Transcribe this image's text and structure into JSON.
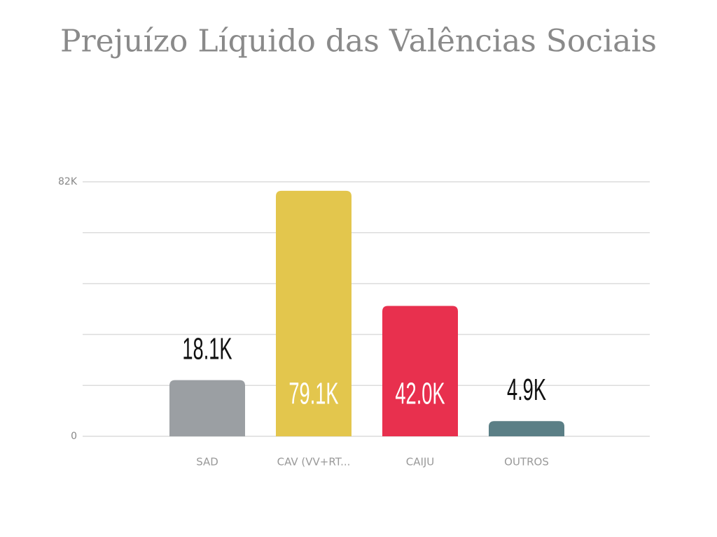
{
  "chart_data": {
    "type": "bar",
    "title": "Prejuízo Líquido das Valências Sociais",
    "categories": [
      "SAD",
      "CAV (VV+RT...",
      "CAIJU",
      "OUTROS"
    ],
    "values": [
      18100,
      79100,
      42000,
      4900
    ],
    "value_labels": [
      "18.1K",
      "79.1K",
      "42.0K",
      "4.9K"
    ],
    "colors": [
      "#9b9fa3",
      "#e3c64d",
      "#e8304e",
      "#5b7f86"
    ],
    "ylim": [
      0,
      82000
    ],
    "yticks": [
      0,
      {
        "value": 82000,
        "label": "82K"
      }
    ],
    "ygrid": [
      0,
      16400,
      32800,
      49200,
      65600,
      82000
    ],
    "grid": true
  }
}
